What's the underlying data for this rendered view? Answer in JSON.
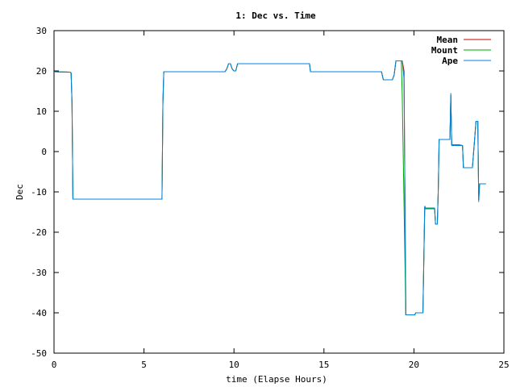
{
  "chart_data": {
    "type": "line",
    "title": "1: Dec vs. Time",
    "xlabel": "time (Elapse Hours)",
    "ylabel": "Dec",
    "xlim": [
      0,
      25
    ],
    "ylim": [
      -50,
      30
    ],
    "xticks": [
      0,
      5,
      10,
      15,
      20,
      25
    ],
    "yticks": [
      -50,
      -40,
      -30,
      -20,
      -10,
      0,
      10,
      20,
      30
    ],
    "grid": false,
    "legend_position": "top-right",
    "series": [
      {
        "name": "Mean",
        "color": "#cc0000",
        "x": [
          0,
          0.9,
          0.95,
          1.0,
          1.05,
          6.0,
          6.05,
          6.1,
          9.5,
          9.6,
          9.7,
          9.8,
          9.9,
          10.0,
          10.1,
          10.2,
          10.3,
          14.2,
          14.25,
          18.2,
          18.3,
          18.8,
          18.9,
          19.0,
          19.35,
          19.45,
          19.55,
          19.65,
          20.0,
          20.05,
          20.1,
          20.5,
          20.6,
          20.65,
          21.0,
          21.15,
          21.2,
          21.3,
          21.35,
          21.4,
          21.5,
          22.0,
          22.05,
          22.1,
          22.5,
          22.7,
          22.75,
          23.1,
          23.2,
          23.25,
          23.45,
          23.55,
          23.6,
          23.65,
          23.7,
          23.75,
          23.8,
          24.0
        ],
        "y": [
          19.8,
          19.7,
          19.5,
          12,
          -11.8,
          -11.8,
          12,
          19.8,
          19.8,
          20.5,
          21.8,
          21.8,
          20.5,
          20,
          20,
          21.8,
          21.8,
          21.8,
          19.8,
          19.8,
          17.8,
          17.8,
          19,
          22.5,
          22.5,
          20,
          -40.5,
          -40.5,
          -40.5,
          -40.5,
          -40,
          -40,
          -14,
          -14.2,
          -14.2,
          -14.2,
          -18,
          -18,
          -10,
          3,
          3,
          3,
          14,
          1.7,
          1.7,
          1.5,
          -4,
          -4,
          -4,
          -4,
          7.5,
          7.5,
          -12,
          -8,
          -8,
          -8,
          -8,
          -8
        ]
      },
      {
        "name": "Mount",
        "color": "#00aa00",
        "x": [
          0,
          0.9,
          0.95,
          1.0,
          1.05,
          6.0,
          6.05,
          6.1,
          9.5,
          9.6,
          9.7,
          9.8,
          9.9,
          10.0,
          10.1,
          10.2,
          10.3,
          14.2,
          14.25,
          18.2,
          18.3,
          18.8,
          18.9,
          19.0,
          19.3,
          19.35,
          19.55,
          19.65,
          20.0,
          20.05,
          20.1,
          20.5,
          20.6,
          20.65,
          21.0,
          21.15,
          21.2,
          21.3,
          21.35,
          21.4,
          21.5,
          22.0,
          22.05,
          22.1,
          22.5,
          22.7,
          22.75,
          23.1,
          23.2,
          23.25,
          23.45,
          23.55,
          23.6,
          23.65,
          23.7,
          23.75,
          23.8,
          24.0
        ],
        "y": [
          19.8,
          19.7,
          19.5,
          12,
          -11.8,
          -11.8,
          12,
          19.8,
          19.8,
          20.5,
          21.8,
          21.8,
          20.5,
          20,
          20,
          21.8,
          21.8,
          21.8,
          19.8,
          19.8,
          17.8,
          17.8,
          19,
          22.5,
          22.5,
          14,
          -40.5,
          -40.5,
          -40.5,
          -40.5,
          -40,
          -40,
          -14,
          -14.2,
          -14.2,
          -14.2,
          -18,
          -18,
          -10,
          3,
          3,
          3,
          14,
          1.7,
          1.7,
          1.5,
          -4,
          -4,
          -4,
          -4,
          7.5,
          7.5,
          -12,
          -8,
          -8,
          -8,
          -8,
          -8
        ]
      },
      {
        "name": "Ape",
        "color": "#0080e0",
        "x": [
          0,
          0.9,
          0.95,
          1.0,
          1.05,
          6.0,
          6.05,
          6.1,
          9.5,
          9.6,
          9.7,
          9.8,
          9.9,
          10.0,
          10.1,
          10.2,
          10.3,
          14.2,
          14.25,
          18.2,
          18.3,
          18.8,
          18.9,
          19.0,
          19.35,
          19.45,
          19.55,
          19.65,
          20.0,
          20.05,
          20.1,
          20.5,
          20.6,
          20.65,
          21.0,
          21.15,
          21.2,
          21.3,
          21.35,
          21.4,
          21.5,
          22.0,
          22.05,
          22.1,
          22.5,
          22.7,
          22.75,
          23.1,
          23.2,
          23.25,
          23.45,
          23.55,
          23.6,
          23.65,
          23.7,
          23.75,
          23.8,
          24.0
        ],
        "y": [
          19.8,
          19.7,
          19.5,
          12,
          -11.8,
          -11.8,
          12,
          19.8,
          19.8,
          20.5,
          21.8,
          21.8,
          20.5,
          20,
          20,
          21.8,
          21.8,
          21.8,
          19.8,
          19.8,
          17.8,
          17.8,
          19,
          22.5,
          22.5,
          18,
          -40.5,
          -40.5,
          -40.5,
          -40.5,
          -40,
          -40,
          -13.5,
          -14,
          -14,
          -14,
          -18,
          -18,
          -10,
          3,
          3,
          3,
          14.5,
          1.5,
          1.5,
          1.5,
          -4,
          -4,
          -4,
          -4,
          7.5,
          7.5,
          -12.5,
          -8,
          -8,
          -8,
          -8,
          -8
        ]
      }
    ]
  }
}
